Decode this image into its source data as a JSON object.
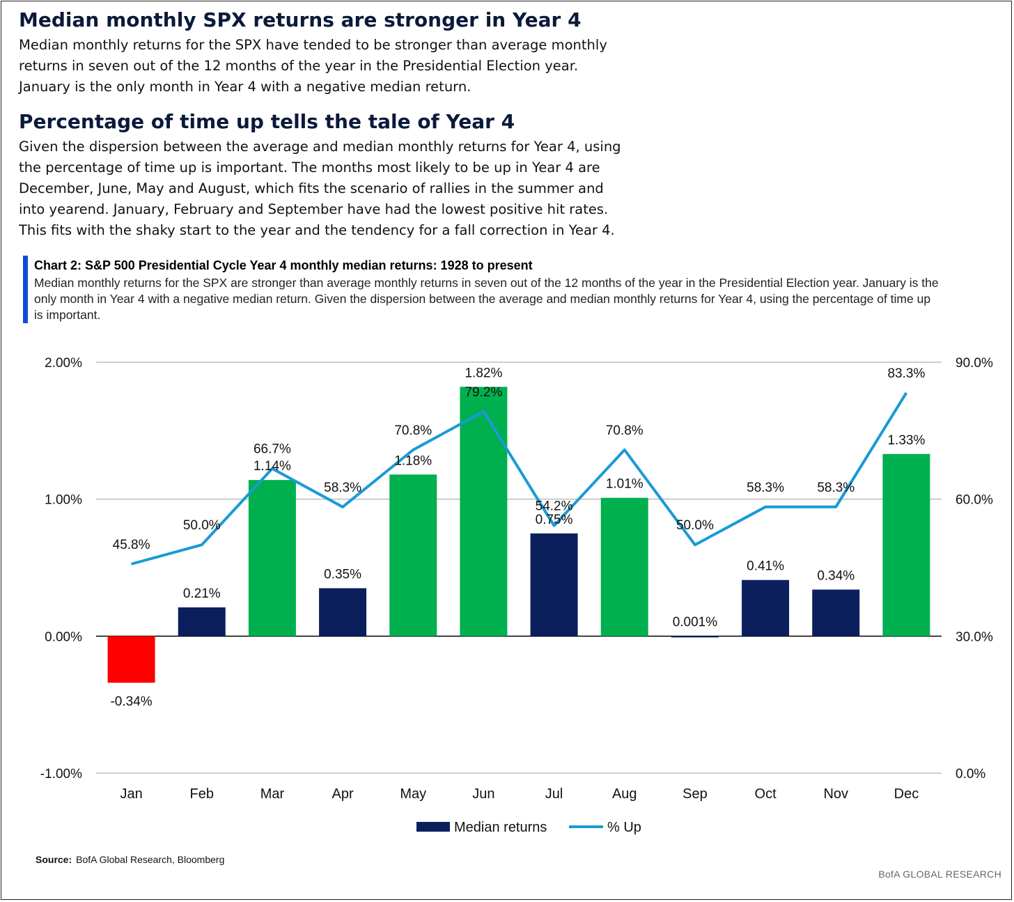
{
  "heading1": "Median monthly SPX returns are stronger in Year 4",
  "para1": [
    "Median monthly returns for the SPX have tended to be stronger than average monthly",
    "returns in seven out of the 12 months of the year in the Presidential Election year.",
    "January is the only month in Year 4 with a negative median return."
  ],
  "heading2": "Percentage  of time up tells the tale of Year 4",
  "para2": [
    "Given the dispersion between the average and median monthly returns for Year 4, using",
    "the percentage of time up is important. The months most likely to be up in Year 4 are",
    "December, June, May and August, which fits the scenario of rallies in the summer and",
    "into yearend. January, February and September have had the lowest positive hit rates.",
    "This fits with the shaky start to the year and the tendency for a fall correction in Year 4."
  ],
  "chart_header": {
    "title": "Chart 2: S&P 500 Presidential Cycle Year 4 monthly median returns: 1928 to present",
    "subtitle": [
      "Median monthly returns for the SPX are stronger than average monthly returns in seven out of the 12 months of the year in the Presidential Election year. January is the",
      "only month in Year 4 with a negative median return. Given the dispersion between the average and median monthly returns for Year 4, using the percentage of time up",
      "is important."
    ]
  },
  "chart_data": {
    "type": "bar",
    "categories": [
      "Jan",
      "Feb",
      "Mar",
      "Apr",
      "May",
      "Jun",
      "Jul",
      "Aug",
      "Sep",
      "Oct",
      "Nov",
      "Dec"
    ],
    "series": [
      {
        "name": "Median returns",
        "type": "bar",
        "axis": "left",
        "values": [
          -0.34,
          0.21,
          1.14,
          0.35,
          1.18,
          1.82,
          0.75,
          1.01,
          0.001,
          0.41,
          0.34,
          1.33
        ],
        "labels": [
          "-0.34%",
          "0.21%",
          "1.14%",
          "0.35%",
          "1.18%",
          "1.82%",
          "0.75%",
          "1.01%",
          "0.001%",
          "0.41%",
          "0.34%",
          "1.33%"
        ],
        "bar_colors": [
          "#ff0000",
          "#0a1f5c",
          "#00b04f",
          "#0a1f5c",
          "#00b04f",
          "#00b04f",
          "#0a1f5c",
          "#00b04f",
          "#0a1f5c",
          "#0a1f5c",
          "#0a1f5c",
          "#00b04f"
        ]
      },
      {
        "name": "% Up",
        "type": "line",
        "axis": "right",
        "values": [
          45.8,
          50.0,
          66.7,
          58.3,
          70.8,
          79.2,
          54.2,
          70.8,
          50.0,
          58.3,
          58.3,
          83.3
        ],
        "labels": [
          "45.8%",
          "50.0%",
          "66.7%",
          "58.3%",
          "70.8%",
          "79.2%",
          "54.2%",
          "70.8%",
          "50.0%",
          "58.3%",
          "58.3%",
          "83.3%"
        ],
        "color": "#1a9ad6"
      }
    ],
    "y_left": {
      "range": [
        -1.0,
        2.0
      ],
      "ticks": [
        -1.0,
        0.0,
        1.0,
        2.0
      ],
      "tick_labels": [
        "-1.00%",
        "0.00%",
        "1.00%",
        "2.00%"
      ]
    },
    "y_right": {
      "range": [
        0,
        90
      ],
      "ticks": [
        0,
        30,
        60,
        90
      ],
      "tick_labels": [
        "0.0%",
        "30.0%",
        "60.0%",
        "90.0%"
      ]
    },
    "grid": true,
    "legend": {
      "placement": "bottom-center",
      "entries": [
        "Median returns",
        "% Up"
      ],
      "bar_color": "#0a1f5c",
      "line_color": "#1a9ad6"
    }
  },
  "footer": {
    "source_label": "Source:",
    "source_text": "BofA Global Research, Bloomberg",
    "brand": "BofA GLOBAL RESEARCH"
  }
}
